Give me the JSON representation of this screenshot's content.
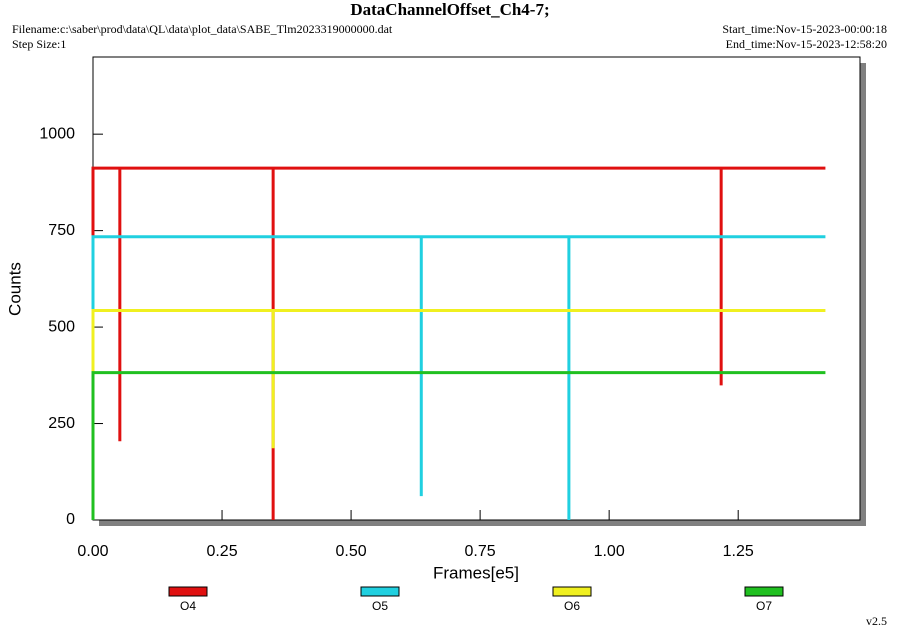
{
  "chart_data": {
    "type": "line",
    "title": "DataChannelOffset_Ch4-7;",
    "filename": "Filename:c:\\saber\\prod\\data\\QL\\data\\plot_data\\SABE_Tlm2023319000000.dat",
    "step_size": "Step Size:1",
    "start_time": "Start_time:Nov-15-2023-00:00:18",
    "end_time": "End_time:Nov-15-2023-12:58:20",
    "version": "v2.5",
    "xlabel": "Frames[e5]",
    "ylabel": "Counts",
    "xlim": [
      0,
      1.486
    ],
    "ylim": [
      0,
      1200
    ],
    "xticks": [
      {
        "value": 0,
        "label": "0.00"
      },
      {
        "value": 0.25,
        "label": "0.25"
      },
      {
        "value": 0.5,
        "label": "0.50"
      },
      {
        "value": 0.75,
        "label": "0.75"
      },
      {
        "value": 1,
        "label": "1.00"
      },
      {
        "value": 1.25,
        "label": "1.25"
      }
    ],
    "yticks": [
      0,
      250,
      500,
      750,
      1000
    ],
    "series": [
      {
        "name": "O4",
        "color": "#e01010",
        "x": [
          0,
          0,
          0.052,
          0.052,
          0.052,
          0.349,
          0.349,
          0.349,
          1.217,
          1.217,
          1.217,
          1.419
        ],
        "values": [
          0,
          912,
          912,
          204,
          912,
          912,
          0,
          912,
          912,
          349,
          912,
          912
        ]
      },
      {
        "name": "O5",
        "color": "#20d0e0",
        "x": [
          0,
          0,
          0.636,
          0.636,
          0.636,
          0.922,
          0.922,
          0.922,
          1.419
        ],
        "values": [
          0,
          734,
          734,
          62,
          734,
          734,
          0,
          734,
          734
        ]
      },
      {
        "name": "O6",
        "color": "#f0f020",
        "x": [
          0,
          0,
          0.349,
          0.349,
          0.349,
          1.419
        ],
        "values": [
          0,
          543,
          543,
          186,
          543,
          543
        ]
      },
      {
        "name": "O7",
        "color": "#20c020",
        "x": [
          0,
          0,
          1.419
        ],
        "values": [
          0,
          382,
          382
        ]
      }
    ]
  }
}
